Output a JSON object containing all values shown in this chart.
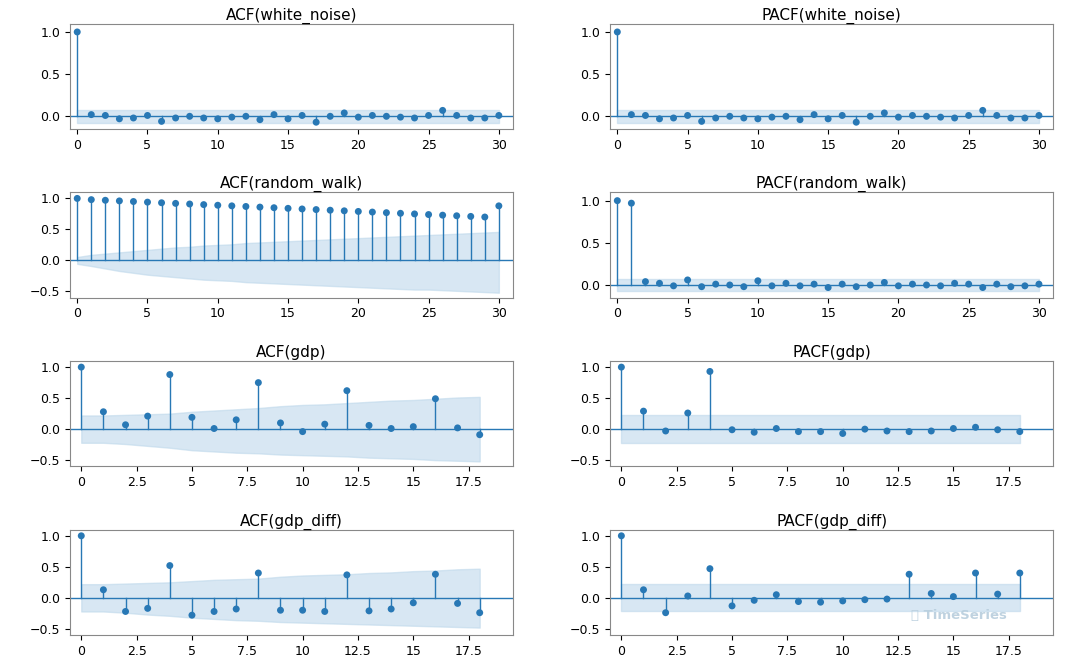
{
  "plots": [
    {
      "title": "ACF(white_noise)",
      "type": "acf",
      "row": 0,
      "col": 0,
      "xlim": [
        -0.5,
        31
      ],
      "ylim": [
        -0.15,
        1.1
      ],
      "yticks": [
        0.0,
        0.5,
        1.0
      ],
      "values": [
        1.0,
        0.02,
        0.01,
        -0.03,
        -0.02,
        0.01,
        -0.06,
        -0.02,
        0.0,
        -0.02,
        -0.03,
        -0.01,
        0.0,
        -0.04,
        0.02,
        -0.03,
        0.01,
        -0.07,
        0.0,
        0.04,
        -0.01,
        0.01,
        0.0,
        -0.01,
        -0.02,
        0.01,
        0.07,
        0.01,
        -0.02,
        -0.02,
        0.01
      ],
      "conf_upper": [
        0.075,
        0.075,
        0.075,
        0.075,
        0.075,
        0.075,
        0.075,
        0.075,
        0.075,
        0.075,
        0.075,
        0.075,
        0.075,
        0.075,
        0.075,
        0.075,
        0.075,
        0.075,
        0.075,
        0.075,
        0.075,
        0.075,
        0.075,
        0.075,
        0.075,
        0.075,
        0.075,
        0.075,
        0.075,
        0.075,
        0.075
      ],
      "conf_lower": [
        -0.075,
        -0.075,
        -0.075,
        -0.075,
        -0.075,
        -0.075,
        -0.075,
        -0.075,
        -0.075,
        -0.075,
        -0.075,
        -0.075,
        -0.075,
        -0.075,
        -0.075,
        -0.075,
        -0.075,
        -0.075,
        -0.075,
        -0.075,
        -0.075,
        -0.075,
        -0.075,
        -0.075,
        -0.075,
        -0.075,
        -0.075,
        -0.075,
        -0.075,
        -0.075,
        -0.075
      ],
      "xticks": [
        0,
        5,
        10,
        15,
        20,
        25,
        30
      ]
    },
    {
      "title": "PACF(white_noise)",
      "type": "pacf",
      "row": 0,
      "col": 1,
      "xlim": [
        -0.5,
        31
      ],
      "ylim": [
        -0.15,
        1.1
      ],
      "yticks": [
        0.0,
        0.5,
        1.0
      ],
      "values": [
        1.0,
        0.02,
        0.01,
        -0.03,
        -0.02,
        0.01,
        -0.06,
        -0.02,
        0.0,
        -0.02,
        -0.03,
        -0.01,
        0.0,
        -0.04,
        0.02,
        -0.03,
        0.01,
        -0.07,
        0.0,
        0.04,
        -0.01,
        0.01,
        0.0,
        -0.01,
        -0.02,
        0.01,
        0.07,
        0.01,
        -0.02,
        -0.02,
        0.01
      ],
      "conf_upper": [
        0.075,
        0.075,
        0.075,
        0.075,
        0.075,
        0.075,
        0.075,
        0.075,
        0.075,
        0.075,
        0.075,
        0.075,
        0.075,
        0.075,
        0.075,
        0.075,
        0.075,
        0.075,
        0.075,
        0.075,
        0.075,
        0.075,
        0.075,
        0.075,
        0.075,
        0.075,
        0.075,
        0.075,
        0.075,
        0.075,
        0.075
      ],
      "conf_lower": [
        -0.075,
        -0.075,
        -0.075,
        -0.075,
        -0.075,
        -0.075,
        -0.075,
        -0.075,
        -0.075,
        -0.075,
        -0.075,
        -0.075,
        -0.075,
        -0.075,
        -0.075,
        -0.075,
        -0.075,
        -0.075,
        -0.075,
        -0.075,
        -0.075,
        -0.075,
        -0.075,
        -0.075,
        -0.075,
        -0.075,
        -0.075,
        -0.075,
        -0.075,
        -0.075,
        -0.075
      ],
      "xticks": [
        0,
        5,
        10,
        15,
        20,
        25,
        30
      ]
    },
    {
      "title": "ACF(random_walk)",
      "type": "acf",
      "row": 1,
      "col": 0,
      "xlim": [
        -0.5,
        31
      ],
      "ylim": [
        -0.6,
        1.1
      ],
      "yticks": [
        -0.5,
        0.0,
        0.5,
        1.0
      ],
      "values": [
        1.0,
        0.98,
        0.97,
        0.96,
        0.95,
        0.94,
        0.93,
        0.92,
        0.91,
        0.9,
        0.89,
        0.88,
        0.87,
        0.86,
        0.85,
        0.84,
        0.83,
        0.82,
        0.81,
        0.8,
        0.79,
        0.78,
        0.77,
        0.76,
        0.75,
        0.74,
        0.73,
        0.72,
        0.71,
        0.7,
        0.88
      ],
      "conf_upper": [
        0.055,
        0.09,
        0.11,
        0.13,
        0.15,
        0.17,
        0.19,
        0.21,
        0.22,
        0.24,
        0.25,
        0.26,
        0.28,
        0.29,
        0.3,
        0.31,
        0.32,
        0.33,
        0.34,
        0.35,
        0.36,
        0.37,
        0.38,
        0.39,
        0.4,
        0.41,
        0.42,
        0.43,
        0.44,
        0.45,
        0.46
      ],
      "conf_lower": [
        -0.055,
        -0.09,
        -0.13,
        -0.17,
        -0.2,
        -0.23,
        -0.25,
        -0.27,
        -0.29,
        -0.31,
        -0.32,
        -0.33,
        -0.35,
        -0.36,
        -0.37,
        -0.38,
        -0.39,
        -0.4,
        -0.41,
        -0.42,
        -0.43,
        -0.44,
        -0.45,
        -0.46,
        -0.47,
        -0.47,
        -0.48,
        -0.49,
        -0.5,
        -0.51,
        -0.52
      ],
      "xticks": [
        0,
        5,
        10,
        15,
        20,
        25,
        30
      ]
    },
    {
      "title": "PACF(random_walk)",
      "type": "pacf",
      "row": 1,
      "col": 1,
      "xlim": [
        -0.5,
        31
      ],
      "ylim": [
        -0.15,
        1.1
      ],
      "yticks": [
        0.0,
        0.5,
        1.0
      ],
      "values": [
        1.0,
        0.97,
        0.04,
        0.02,
        -0.01,
        0.06,
        -0.02,
        0.01,
        0.0,
        -0.02,
        0.05,
        -0.01,
        0.02,
        -0.01,
        0.01,
        -0.03,
        0.01,
        -0.02,
        0.0,
        0.03,
        -0.01,
        0.01,
        0.0,
        -0.01,
        0.02,
        0.01,
        -0.03,
        0.01,
        -0.02,
        -0.01,
        0.01
      ],
      "conf_upper": [
        0.075,
        0.075,
        0.075,
        0.075,
        0.075,
        0.075,
        0.075,
        0.075,
        0.075,
        0.075,
        0.075,
        0.075,
        0.075,
        0.075,
        0.075,
        0.075,
        0.075,
        0.075,
        0.075,
        0.075,
        0.075,
        0.075,
        0.075,
        0.075,
        0.075,
        0.075,
        0.075,
        0.075,
        0.075,
        0.075,
        0.075
      ],
      "conf_lower": [
        -0.075,
        -0.075,
        -0.075,
        -0.075,
        -0.075,
        -0.075,
        -0.075,
        -0.075,
        -0.075,
        -0.075,
        -0.075,
        -0.075,
        -0.075,
        -0.075,
        -0.075,
        -0.075,
        -0.075,
        -0.075,
        -0.075,
        -0.075,
        -0.075,
        -0.075,
        -0.075,
        -0.075,
        -0.075,
        -0.075,
        -0.075,
        -0.075,
        -0.075,
        -0.075,
        -0.075
      ],
      "xticks": [
        0,
        5,
        10,
        15,
        20,
        25,
        30
      ]
    },
    {
      "title": "ACF(gdp)",
      "type": "acf",
      "row": 2,
      "col": 0,
      "xlim": [
        -0.5,
        19.5
      ],
      "ylim": [
        -0.6,
        1.1
      ],
      "yticks": [
        -0.5,
        0.0,
        0.5,
        1.0
      ],
      "values": [
        1.0,
        0.28,
        0.07,
        0.21,
        0.88,
        0.19,
        0.01,
        0.15,
        0.75,
        0.1,
        -0.04,
        0.08,
        0.62,
        0.06,
        0.01,
        0.04,
        0.49,
        0.02,
        -0.09
      ],
      "conf_upper": [
        0.22,
        0.22,
        0.23,
        0.24,
        0.25,
        0.28,
        0.3,
        0.32,
        0.34,
        0.37,
        0.39,
        0.4,
        0.42,
        0.44,
        0.46,
        0.47,
        0.49,
        0.51,
        0.52
      ],
      "conf_lower": [
        -0.22,
        -0.22,
        -0.24,
        -0.27,
        -0.3,
        -0.34,
        -0.36,
        -0.38,
        -0.39,
        -0.41,
        -0.42,
        -0.43,
        -0.44,
        -0.46,
        -0.47,
        -0.48,
        -0.5,
        -0.51,
        -0.52
      ],
      "xticks": [
        0.0,
        2.5,
        5.0,
        7.5,
        10.0,
        12.5,
        15.0,
        17.5
      ]
    },
    {
      "title": "PACF(gdp)",
      "type": "pacf",
      "row": 2,
      "col": 1,
      "xlim": [
        -0.5,
        19.5
      ],
      "ylim": [
        -0.6,
        1.1
      ],
      "yticks": [
        -0.5,
        0.0,
        0.5,
        1.0
      ],
      "values": [
        1.0,
        0.29,
        -0.03,
        0.26,
        0.93,
        -0.01,
        -0.05,
        0.01,
        -0.04,
        -0.04,
        -0.07,
        0.0,
        -0.03,
        -0.04,
        -0.03,
        0.01,
        0.03,
        -0.01,
        -0.04
      ],
      "conf_upper": [
        0.22,
        0.22,
        0.22,
        0.22,
        0.22,
        0.22,
        0.22,
        0.22,
        0.22,
        0.22,
        0.22,
        0.22,
        0.22,
        0.22,
        0.22,
        0.22,
        0.22,
        0.22,
        0.22
      ],
      "conf_lower": [
        -0.22,
        -0.22,
        -0.22,
        -0.22,
        -0.22,
        -0.22,
        -0.22,
        -0.22,
        -0.22,
        -0.22,
        -0.22,
        -0.22,
        -0.22,
        -0.22,
        -0.22,
        -0.22,
        -0.22,
        -0.22,
        -0.22
      ],
      "xticks": [
        0.0,
        2.5,
        5.0,
        7.5,
        10.0,
        12.5,
        15.0,
        17.5
      ]
    },
    {
      "title": "ACF(gdp_diff)",
      "type": "acf",
      "row": 3,
      "col": 0,
      "xlim": [
        -0.5,
        19.5
      ],
      "ylim": [
        -0.6,
        1.1
      ],
      "yticks": [
        -0.5,
        0.0,
        0.5,
        1.0
      ],
      "values": [
        1.0,
        0.13,
        -0.22,
        -0.17,
        0.52,
        -0.28,
        -0.22,
        -0.18,
        0.4,
        -0.2,
        -0.2,
        -0.22,
        0.37,
        -0.21,
        -0.18,
        -0.08,
        0.38,
        -0.09,
        -0.24
      ],
      "conf_upper": [
        0.22,
        0.22,
        0.23,
        0.24,
        0.25,
        0.27,
        0.29,
        0.3,
        0.31,
        0.34,
        0.36,
        0.37,
        0.38,
        0.4,
        0.41,
        0.43,
        0.44,
        0.46,
        0.47
      ],
      "conf_lower": [
        -0.22,
        -0.22,
        -0.24,
        -0.27,
        -0.29,
        -0.32,
        -0.34,
        -0.36,
        -0.37,
        -0.39,
        -0.4,
        -0.41,
        -0.42,
        -0.43,
        -0.44,
        -0.45,
        -0.46,
        -0.47,
        -0.48
      ],
      "xticks": [
        0.0,
        2.5,
        5.0,
        7.5,
        10.0,
        12.5,
        15.0,
        17.5
      ]
    },
    {
      "title": "PACF(gdp_diff)",
      "type": "pacf",
      "row": 3,
      "col": 1,
      "xlim": [
        -0.5,
        19.5
      ],
      "ylim": [
        -0.6,
        1.1
      ],
      "yticks": [
        -0.5,
        0.0,
        0.5,
        1.0
      ],
      "values": [
        1.0,
        0.13,
        -0.24,
        0.03,
        0.47,
        -0.13,
        -0.04,
        0.05,
        -0.06,
        -0.07,
        -0.05,
        -0.03,
        -0.02,
        0.38,
        0.07,
        0.02,
        0.4,
        0.06,
        0.4
      ],
      "conf_upper": [
        0.22,
        0.22,
        0.22,
        0.22,
        0.22,
        0.22,
        0.22,
        0.22,
        0.22,
        0.22,
        0.22,
        0.22,
        0.22,
        0.22,
        0.22,
        0.22,
        0.22,
        0.22,
        0.22
      ],
      "conf_lower": [
        -0.22,
        -0.22,
        -0.22,
        -0.22,
        -0.22,
        -0.22,
        -0.22,
        -0.22,
        -0.22,
        -0.22,
        -0.22,
        -0.22,
        -0.22,
        -0.22,
        -0.22,
        -0.22,
        -0.22,
        -0.22,
        -0.22
      ],
      "xticks": [
        0.0,
        2.5,
        5.0,
        7.5,
        10.0,
        12.5,
        15.0,
        17.5
      ]
    }
  ],
  "line_color": "#2878b5",
  "marker_color": "#2878b5",
  "conf_fill_color": "#bed8eb",
  "zero_line_color": "#2878b5",
  "background_color": "#ffffff",
  "title_fontsize": 11,
  "tick_fontsize": 9,
  "marker_size": 5,
  "watermark_text": "TimeSeries",
  "watermark_color": "#b8cedd"
}
